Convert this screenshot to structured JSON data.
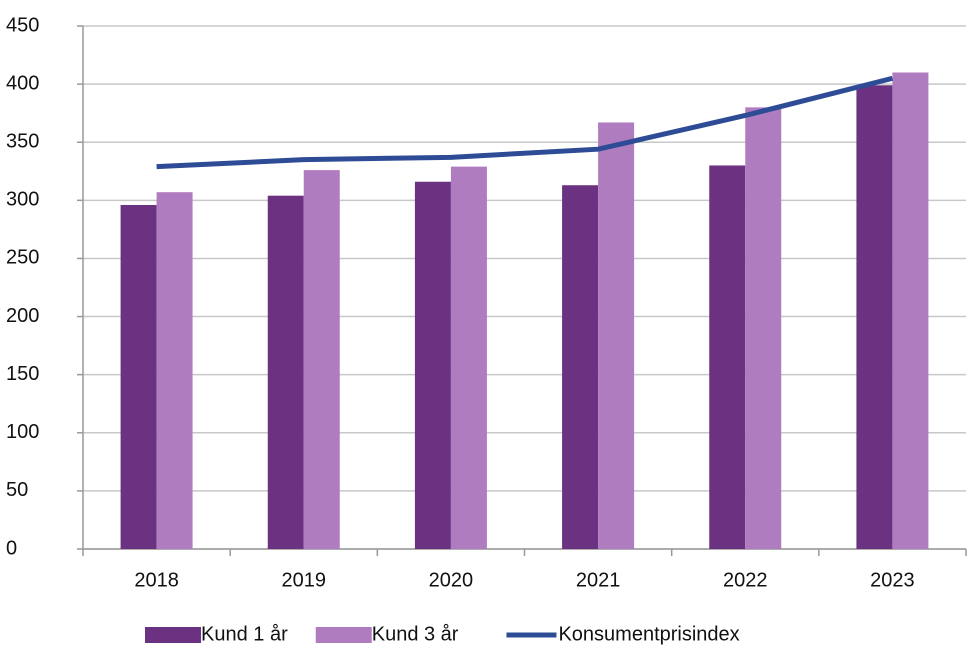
{
  "chart_data": {
    "type": "combo",
    "categories": [
      "2018",
      "2019",
      "2020",
      "2021",
      "2022",
      "2023"
    ],
    "series": [
      {
        "name": "Kund 1 år",
        "type": "bar",
        "color": "#6c3282",
        "values": [
          296,
          304,
          316,
          313,
          330,
          399
        ]
      },
      {
        "name": "Kund 3 år",
        "type": "bar",
        "color": "#b07cc0",
        "values": [
          307,
          326,
          329,
          367,
          380,
          410
        ]
      },
      {
        "name": "Konsumentprisindex",
        "type": "line",
        "color": "#2e4c96",
        "values": [
          329,
          335,
          337,
          344,
          373,
          405
        ]
      }
    ],
    "ylim": [
      0,
      450
    ],
    "yticks": [
      0,
      50,
      100,
      150,
      200,
      250,
      300,
      350,
      400,
      450
    ],
    "grid": true,
    "legend": "bottom"
  }
}
